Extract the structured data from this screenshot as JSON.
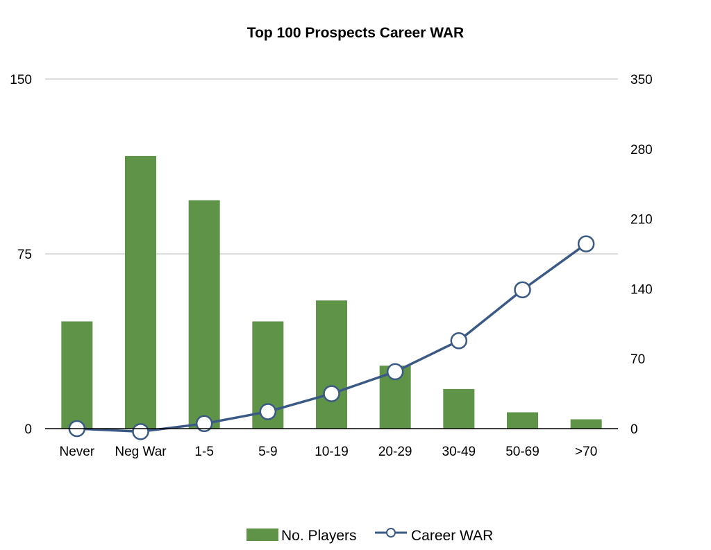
{
  "chart_data": {
    "type": "bar",
    "title": "Top 100 Prospects Career WAR",
    "categories": [
      "Never",
      "Neg War",
      "1-5",
      "5-9",
      "10-19",
      "20-29",
      "30-49",
      "50-69",
      ">70"
    ],
    "series": [
      {
        "name": "No. Players",
        "type": "bar",
        "axis": "left",
        "color": "#5f9448",
        "values": [
          46,
          117,
          98,
          46,
          55,
          27,
          17,
          7,
          4
        ]
      },
      {
        "name": "Career WAR",
        "type": "line",
        "axis": "right",
        "color": "#3a5a85",
        "values": [
          0,
          -3,
          5,
          17,
          35,
          57,
          88,
          139,
          185
        ]
      }
    ],
    "y_left": {
      "ylim": [
        0,
        150
      ],
      "ticks": [
        "0",
        "75",
        "150"
      ],
      "tick_values": [
        0,
        75,
        150
      ]
    },
    "y_right": {
      "ylim": [
        0,
        350
      ],
      "ticks": [
        "0",
        "70",
        "140",
        "210",
        "280",
        "350"
      ],
      "tick_values": [
        0,
        70,
        140,
        210,
        280,
        350
      ]
    },
    "grid": true,
    "legend": {
      "position": "bottom",
      "entries": [
        "No. Players",
        "Career WAR"
      ]
    }
  }
}
